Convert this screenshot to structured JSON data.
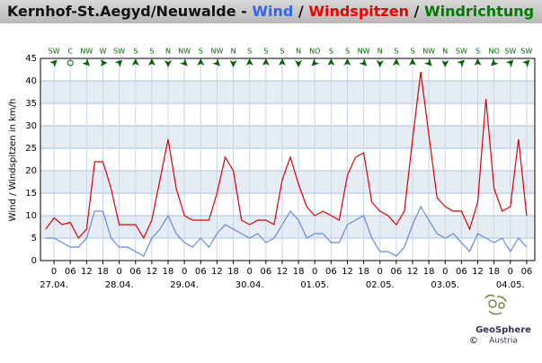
{
  "chart_data": {
    "type": "line",
    "title_parts": [
      {
        "text": "Kernhof-St.Aegyd/Neuwalde - ",
        "color": "#111111"
      },
      {
        "text": "Wind",
        "color": "#3366ee"
      },
      {
        "text": " / ",
        "color": "#111111"
      },
      {
        "text": "Windspitzen",
        "color": "#ee0000"
      },
      {
        "text": " / ",
        "color": "#111111"
      },
      {
        "text": "Windrichtung",
        "color": "#007a00"
      }
    ],
    "ylabel": "Wind / Windspitzen in km/h",
    "x": [
      -3,
      0,
      3,
      6,
      9,
      12,
      15,
      18,
      21,
      24,
      27,
      30,
      33,
      36,
      39,
      42,
      45,
      48,
      51,
      54,
      57,
      60,
      63,
      66,
      69,
      72,
      75,
      78,
      81,
      84,
      87,
      90,
      93,
      96,
      99,
      102,
      105,
      108,
      111,
      114,
      117,
      120,
      123,
      126,
      129,
      132,
      135,
      138,
      141,
      144,
      147,
      150,
      153,
      156,
      159,
      162,
      165,
      168,
      171,
      174
    ],
    "series": [
      {
        "name": "Wind",
        "color": "#6688dd",
        "values": [
          5,
          5,
          4,
          3,
          3,
          5,
          11,
          11,
          5,
          3,
          3,
          2,
          1,
          5,
          7,
          10,
          6,
          4,
          3,
          5,
          3,
          6,
          8,
          7,
          6,
          5,
          6,
          4,
          5,
          8,
          11,
          9,
          5,
          6,
          6,
          4,
          4,
          8,
          9,
          10,
          5,
          2,
          2,
          1,
          3,
          8,
          12,
          9,
          6,
          5,
          6,
          4,
          2,
          6,
          5,
          4,
          5,
          2,
          5,
          3
        ]
      },
      {
        "name": "Windspitzen",
        "color": "#dd0000",
        "values": [
          7,
          9.5,
          8,
          8.5,
          5,
          7,
          22,
          22,
          16,
          8,
          8,
          8,
          5,
          9,
          18,
          27,
          16,
          10,
          9,
          9,
          9,
          15,
          23,
          20,
          9,
          8,
          9,
          9,
          8,
          18,
          23,
          17,
          12,
          10,
          11,
          10,
          9,
          19,
          23,
          24,
          13,
          11,
          10,
          8,
          11,
          27,
          42,
          28,
          14,
          12,
          11,
          11,
          7,
          13,
          36,
          16,
          11,
          12,
          27,
          10
        ]
      }
    ],
    "xlim": [
      -5,
      177
    ],
    "ylim": [
      0,
      45
    ],
    "yticks": [
      0,
      5,
      10,
      15,
      20,
      25,
      30,
      35,
      40,
      45
    ],
    "xticks": [
      0,
      {
        "value": 6,
        "label": "06"
      },
      12,
      18,
      {
        "value": 24,
        "label": "0"
      },
      {
        "value": 30,
        "label": "06"
      },
      {
        "value": 36,
        "label": "12"
      },
      {
        "value": 42,
        "label": "18"
      },
      {
        "value": 48,
        "label": "0"
      },
      {
        "value": 54,
        "label": "06"
      },
      {
        "value": 60,
        "label": "12"
      },
      {
        "value": 66,
        "label": "18"
      },
      {
        "value": 72,
        "label": "0"
      },
      {
        "value": 78,
        "label": "06"
      },
      {
        "value": 84,
        "label": "12"
      },
      {
        "value": 90,
        "label": "18"
      },
      {
        "value": 96,
        "label": "0"
      },
      {
        "value": 102,
        "label": "06"
      },
      {
        "value": 108,
        "label": "12"
      },
      {
        "value": 114,
        "label": "18"
      },
      {
        "value": 120,
        "label": "0"
      },
      {
        "value": 126,
        "label": "06"
      },
      {
        "value": 132,
        "label": "12"
      },
      {
        "value": 138,
        "label": "18"
      },
      {
        "value": 144,
        "label": "0"
      },
      {
        "value": 150,
        "label": "06"
      },
      {
        "value": 156,
        "label": "12"
      },
      {
        "value": 162,
        "label": "18"
      },
      {
        "value": 168,
        "label": "0"
      },
      {
        "value": 174,
        "label": "06"
      }
    ],
    "date_ticks": [
      {
        "value": 0,
        "label": "27.04."
      },
      {
        "value": 24,
        "label": "28.04."
      },
      {
        "value": 48,
        "label": "29.04."
      },
      {
        "value": 72,
        "label": "30.04."
      },
      {
        "value": 96,
        "label": "01.05."
      },
      {
        "value": 120,
        "label": "02.05."
      },
      {
        "value": 144,
        "label": "03.05."
      },
      {
        "value": 168,
        "label": "04.05."
      }
    ],
    "direction": {
      "x": [
        0,
        6,
        12,
        18,
        24,
        30,
        36,
        42,
        48,
        54,
        60,
        66,
        72,
        78,
        84,
        90,
        96,
        102,
        108,
        114,
        120,
        126,
        132,
        138,
        144,
        150,
        156,
        162,
        168,
        174
      ],
      "labels": [
        "SW",
        "C",
        "NW",
        "W",
        "SW",
        "S",
        "S",
        "N",
        "NW",
        "S",
        "NW",
        "N",
        "S",
        "S",
        "S",
        "N",
        "NO",
        "S",
        "S",
        "NW",
        "N",
        "S",
        "S",
        "NW",
        "N",
        "SW",
        "S",
        "NO",
        "SW",
        "SW"
      ],
      "color": "#006600"
    },
    "grid": true,
    "logo": {
      "name": "GeoSphere",
      "sub": "Austria",
      "copyright": "©"
    }
  }
}
